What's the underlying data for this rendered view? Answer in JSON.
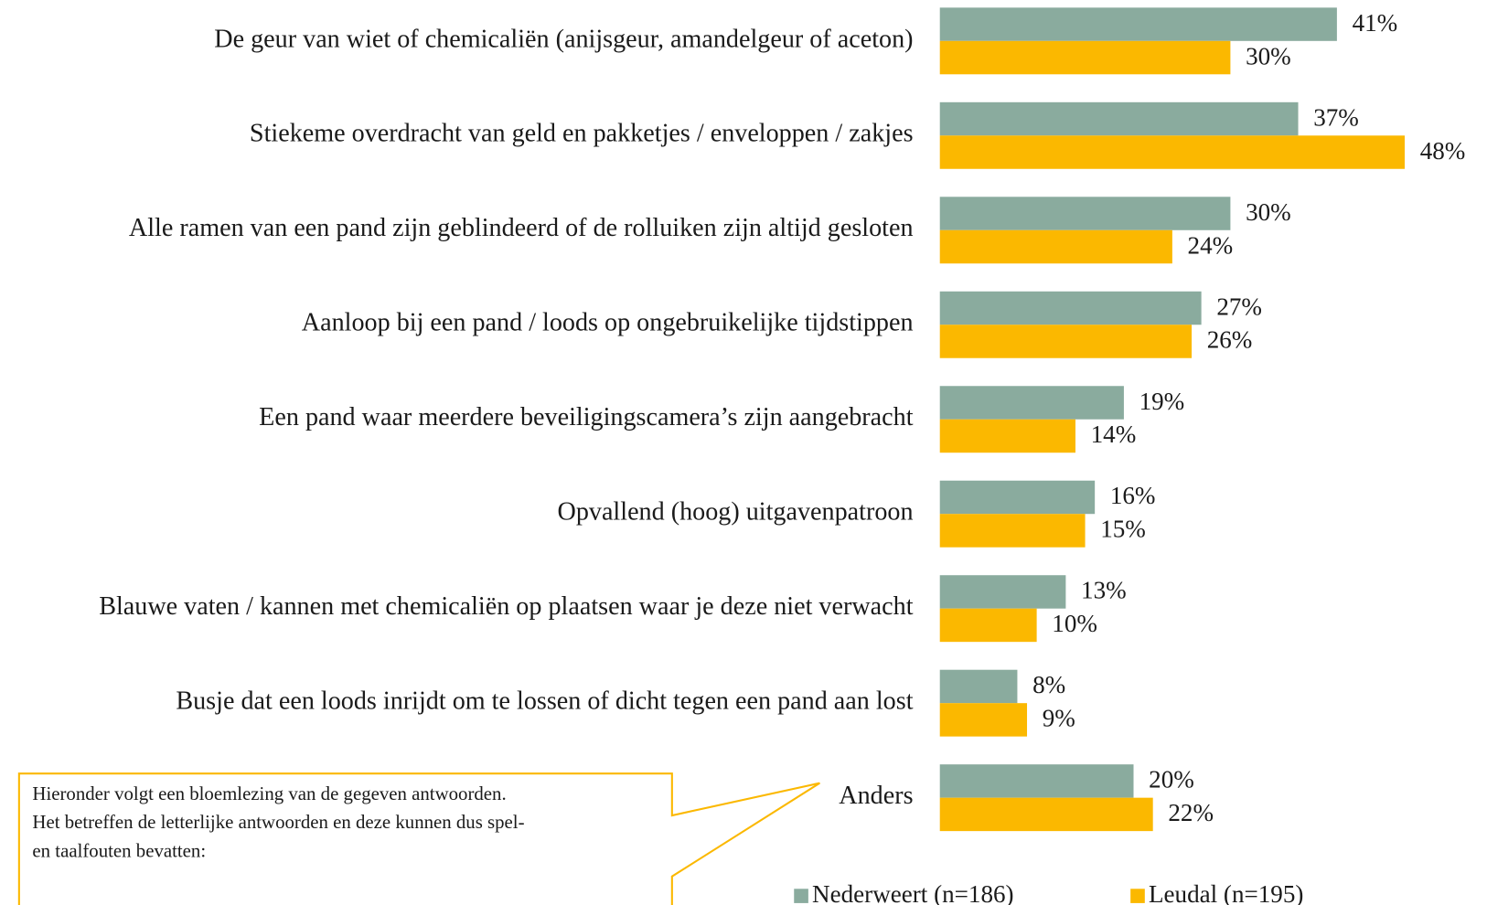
{
  "chart_data": {
    "type": "bar",
    "orientation": "horizontal",
    "categories": [
      "De geur van wiet of chemicaliën (anijsgeur, amandelgeur of aceton)",
      "Stiekeme overdracht van geld en pakketjes / enveloppen / zakjes",
      "Alle ramen van een pand zijn geblindeerd of de rolluiken zijn altijd gesloten",
      "Aanloop bij een pand / loods op ongebruikelijke tijdstippen",
      "Een pand waar meerdere beveiligingscamera’s zijn aangebracht",
      "Opvallend (hoog) uitgavenpatroon",
      "Blauwe vaten / kannen met chemicaliën op plaatsen waar je deze niet verwacht",
      "Busje dat een loods inrijdt om te lossen of dicht tegen een pand aan lost",
      "Anders"
    ],
    "series": [
      {
        "name": "Nederweert (n=186)",
        "color": "#8aab9e",
        "values": [
          41,
          37,
          30,
          27,
          19,
          16,
          13,
          8,
          20
        ],
        "value_labels": [
          "41%",
          "37%",
          "30%",
          "27%",
          "19%",
          "16%",
          "13%",
          "8%",
          "20%"
        ]
      },
      {
        "name": "Leudal (n=195)",
        "color": "#fbb800",
        "values": [
          30,
          48,
          24,
          26,
          14,
          15,
          10,
          9,
          22
        ],
        "value_labels": [
          "30%",
          "48%",
          "24%",
          "26%",
          "14%",
          "15%",
          "10%",
          "9%",
          "22%"
        ]
      }
    ],
    "annotation": [
      "Hieronder volgt een bloemlezing van de gegeven antwoorden.",
      "Het betreffen de letterlijke antwoorden en deze kunnen dus spel-",
      "en taalfouten bevatten:"
    ],
    "legend": "bottom"
  }
}
